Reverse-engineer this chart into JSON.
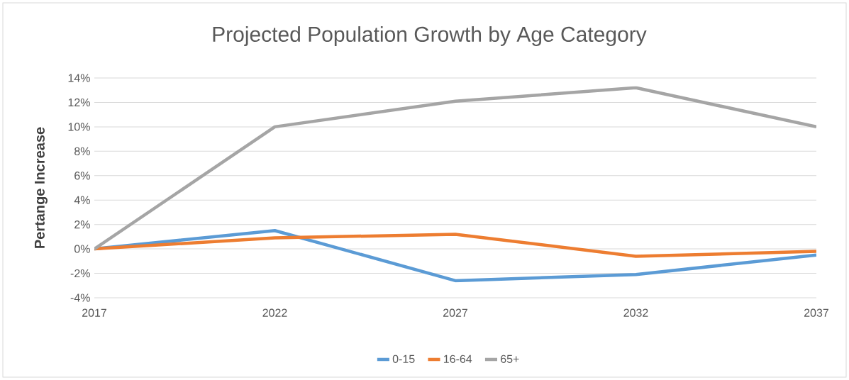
{
  "chart_data": {
    "type": "line",
    "title": "Projected Population Growth by Age Category",
    "ylabel": "Pertange Increase",
    "x": [
      2017,
      2022,
      2027,
      2032,
      2037
    ],
    "series": [
      {
        "name": "0-15",
        "color": "#5b9bd5",
        "values": [
          0,
          1.5,
          -2.6,
          -2.1,
          -0.5
        ]
      },
      {
        "name": "16-64",
        "color": "#ed7d31",
        "values": [
          0,
          0.9,
          1.2,
          -0.6,
          -0.2
        ]
      },
      {
        "name": "65+",
        "color": "#a5a5a5",
        "values": [
          0,
          10,
          12.1,
          13.2,
          10
        ]
      }
    ],
    "xlim": [
      2017,
      2037
    ],
    "xticks": [
      2017,
      2022,
      2027,
      2032,
      2037
    ],
    "ylim": [
      -4,
      14
    ],
    "yticks": [
      {
        "value": -4,
        "label": "-4%"
      },
      {
        "value": -2,
        "label": "-2%"
      },
      {
        "value": 0,
        "label": "0%"
      },
      {
        "value": 2,
        "label": "2%"
      },
      {
        "value": 4,
        "label": "4%"
      },
      {
        "value": 6,
        "label": "6%"
      },
      {
        "value": 8,
        "label": "8%"
      },
      {
        "value": 10,
        "label": "10%"
      },
      {
        "value": 12,
        "label": "12%"
      },
      {
        "value": 14,
        "label": "14%"
      }
    ],
    "grid": "y",
    "legend": "bottom",
    "marker": "none",
    "line_style": "solid"
  }
}
